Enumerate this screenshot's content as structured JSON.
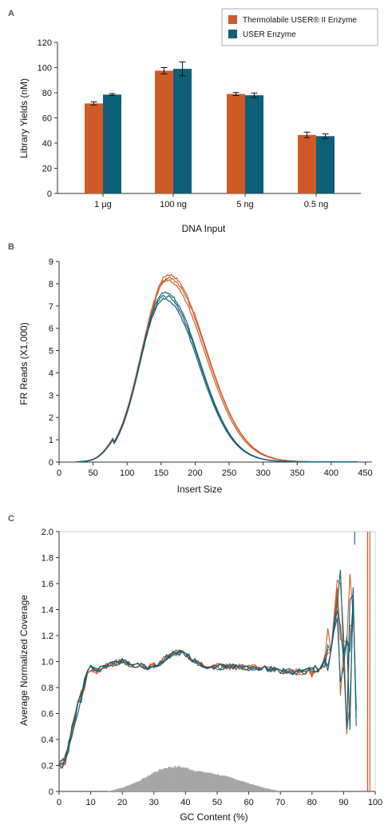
{
  "colors": {
    "thermolabile": "#cf5a27",
    "user": "#0e5f78",
    "histogram": "#a6a6a6",
    "axis": "#333333"
  },
  "chart_data": [
    {
      "panel": "A",
      "type": "bar",
      "categories": [
        "1 µg",
        "100 ng",
        "5 ng",
        "0.5 ng"
      ],
      "series": [
        {
          "name": "Thermolabile USER® II Enzyme",
          "values": [
            71.5,
            97.5,
            79,
            46.5
          ],
          "errors": [
            1.2,
            2.5,
            1.2,
            2.2
          ]
        },
        {
          "name": "USER Enzyme",
          "values": [
            78.5,
            99,
            78,
            45.5
          ],
          "errors": [
            0.8,
            5.5,
            1.8,
            1.8
          ]
        }
      ],
      "xlabel": "DNA Input",
      "ylabel": "Library Yields (nM)",
      "ylim": [
        0,
        120
      ],
      "yticks": [
        0,
        20,
        40,
        60,
        80,
        100,
        120
      ],
      "legend": "top-right"
    },
    {
      "panel": "B",
      "type": "line",
      "xlabel": "Insert Size",
      "ylabel": "FR Reads (X1,000)",
      "xlim": [
        0,
        460
      ],
      "ylim": [
        0,
        9
      ],
      "xticks": [
        0,
        50,
        100,
        150,
        200,
        250,
        300,
        350,
        400,
        450
      ],
      "yticks": [
        0,
        1,
        2,
        3,
        4,
        5,
        6,
        7,
        8,
        9
      ],
      "series": [
        {
          "group": "thermolabile",
          "peak_x": 160,
          "peak_y": 8.4
        },
        {
          "group": "thermolabile",
          "peak_x": 160,
          "peak_y": 8.25
        },
        {
          "group": "thermolabile",
          "peak_x": 158,
          "peak_y": 8.15
        },
        {
          "group": "user",
          "peak_x": 155,
          "peak_y": 7.6
        },
        {
          "group": "user",
          "peak_x": 155,
          "peak_y": 7.45
        },
        {
          "group": "user",
          "peak_x": 154,
          "peak_y": 7.3
        }
      ]
    },
    {
      "panel": "C",
      "type": "line",
      "xlabel": "GC Content (%)",
      "ylabel": "Average Normalized Coverage",
      "xlim": [
        0,
        100
      ],
      "ylim": [
        0,
        2.0
      ],
      "xticks": [
        0,
        10,
        20,
        30,
        40,
        50,
        60,
        70,
        80,
        90,
        100
      ],
      "yticks": [
        "0",
        "0.2",
        "0.4",
        "0.6",
        "0.8",
        "1.0",
        "1.2",
        "1.4",
        "1.6",
        "1.8",
        "2.0"
      ],
      "coverage_profile": {
        "x": [
          0,
          2,
          4,
          6,
          8,
          10,
          12,
          15,
          18,
          20,
          22,
          25,
          28,
          30,
          32,
          34,
          36,
          38,
          40,
          42,
          45,
          50,
          55,
          60,
          65,
          70,
          75,
          78,
          80,
          82,
          84,
          86,
          88
        ],
        "y": [
          0.2,
          0.25,
          0.45,
          0.65,
          0.82,
          0.95,
          0.93,
          0.97,
          0.99,
          1.0,
          0.98,
          0.97,
          0.96,
          0.97,
          0.99,
          1.03,
          1.06,
          1.07,
          1.06,
          1.02,
          0.97,
          0.96,
          0.96,
          0.95,
          0.95,
          0.93,
          0.92,
          0.92,
          0.92,
          0.95,
          1.0,
          1.2,
          1.5
        ]
      },
      "gc_histogram": {
        "x": [
          15,
          20,
          25,
          28,
          30,
          32,
          34,
          36,
          38,
          40,
          42,
          45,
          48,
          50,
          55,
          60,
          65,
          68,
          70
        ],
        "y": [
          0.0,
          0.03,
          0.08,
          0.12,
          0.15,
          0.17,
          0.185,
          0.19,
          0.19,
          0.18,
          0.165,
          0.15,
          0.14,
          0.13,
          0.1,
          0.06,
          0.025,
          0.01,
          0.0
        ]
      },
      "series": [
        {
          "group": "thermolabile"
        },
        {
          "group": "thermolabile"
        },
        {
          "group": "thermolabile"
        },
        {
          "group": "user"
        },
        {
          "group": "user"
        },
        {
          "group": "user"
        }
      ]
    }
  ]
}
